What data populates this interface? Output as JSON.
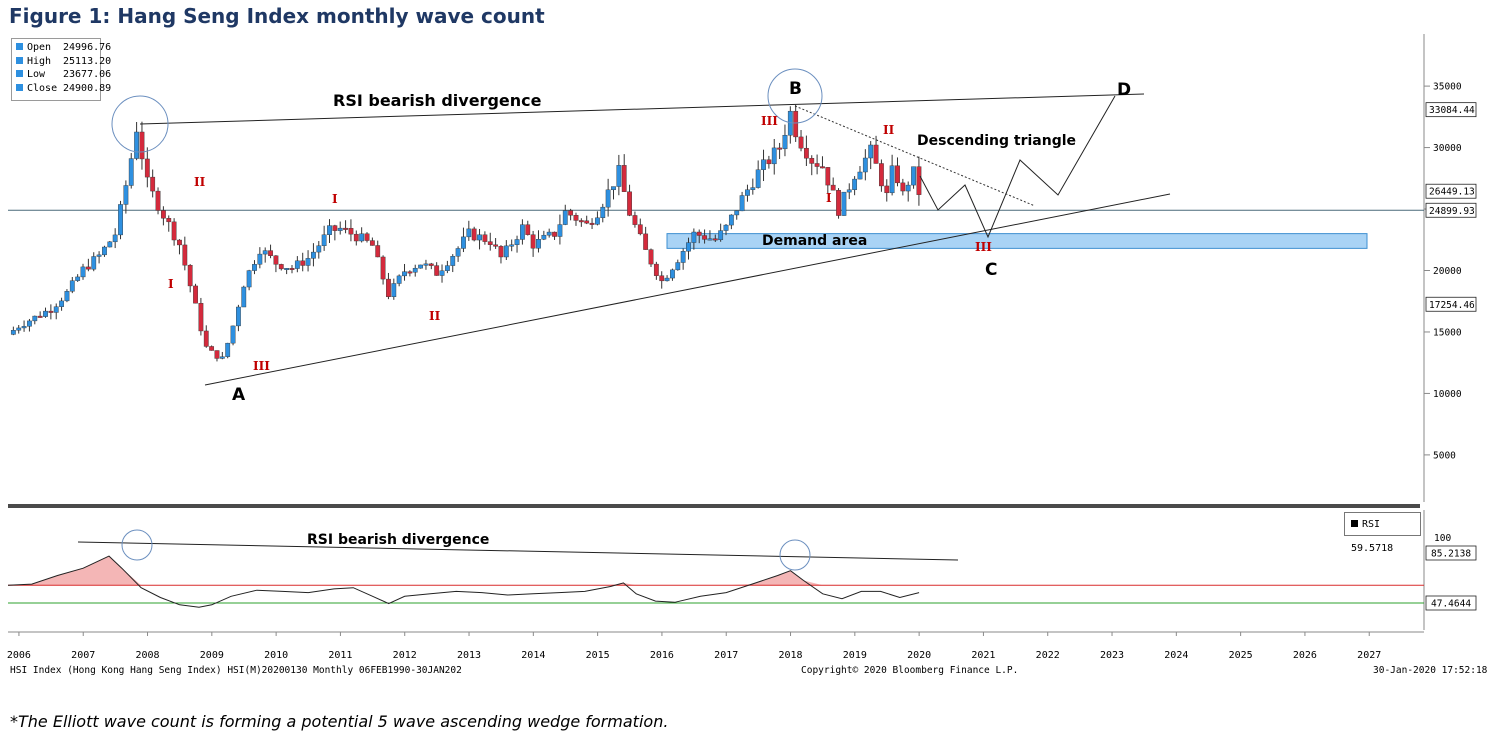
{
  "figure_title": "Figure 1: Hang Seng Index monthly wave count",
  "caption": "*The Elliott wave count is forming a potential 5 wave ascending wedge formation.",
  "legend": {
    "open_label": "Open",
    "open_value": "24996.76",
    "high_label": "High",
    "high_value": "25113.20",
    "low_label": "Low",
    "low_value": "23677.06",
    "close_label": "Close",
    "close_value": "24900.89"
  },
  "rsi_legend": {
    "label": "RSI",
    "value": "59.5718"
  },
  "footer": {
    "left": "HSI Index (Hong Kong Hang Seng Index) HSI(M)20200130  Monthly 06FEB1990-30JAN202",
    "center": "Copyright© 2020 Bloomberg Finance L.P.",
    "right": "30-Jan-2020 17:52:18"
  },
  "colors": {
    "up": "#2e90e0",
    "down": "#d42a3c",
    "title": "#1f3864",
    "wave_label": "#c00000",
    "demand": "#a9d3f5",
    "rsi_fill": "#f4b6b6",
    "rsi_upper": "#d92b2b",
    "rsi_lower": "#2ca02c"
  },
  "chart_data": [
    {
      "type": "candlestick",
      "title": "",
      "x_ticks": [
        "2006",
        "2007",
        "2008",
        "2009",
        "2010",
        "2011",
        "2012",
        "2013",
        "2014",
        "2015",
        "2016",
        "2017",
        "2018",
        "2019",
        "2020",
        "2021",
        "2022",
        "2023",
        "2024",
        "2025",
        "2026",
        "2027"
      ],
      "y_ticks": [
        5000,
        10000,
        15000,
        20000,
        25000,
        30000,
        35000
      ],
      "y_tick_labels": [
        "5000",
        "10000",
        "15000",
        "20000",
        "25000",
        "30000",
        "35000"
      ],
      "ylim": [
        0,
        39000
      ],
      "price_tags": [
        {
          "label": "33084.44",
          "value": 33084
        },
        {
          "label": "26449.13",
          "value": 26449
        },
        {
          "label": "24899.93",
          "value": 24900
        },
        {
          "label": "17254.46",
          "value": 17254
        }
      ],
      "close_series_approx": [
        [
          2005.83,
          14800
        ],
        [
          2006.0,
          15500
        ],
        [
          2006.25,
          16200
        ],
        [
          2006.5,
          16900
        ],
        [
          2006.75,
          18200
        ],
        [
          2007.0,
          20100
        ],
        [
          2007.25,
          21200
        ],
        [
          2007.5,
          23000
        ],
        [
          2007.7,
          27800
        ],
        [
          2007.83,
          31600
        ],
        [
          2008.0,
          27000
        ],
        [
          2008.25,
          24500
        ],
        [
          2008.5,
          22100
        ],
        [
          2008.75,
          17000
        ],
        [
          2008.9,
          13800
        ],
        [
          2009.0,
          13300
        ],
        [
          2009.17,
          12800
        ],
        [
          2009.33,
          15500
        ],
        [
          2009.5,
          19000
        ],
        [
          2009.75,
          21800
        ],
        [
          2010.0,
          20600
        ],
        [
          2010.25,
          20200
        ],
        [
          2010.5,
          21000
        ],
        [
          2010.83,
          23200
        ],
        [
          2011.0,
          23400
        ],
        [
          2011.25,
          22800
        ],
        [
          2011.5,
          22000
        ],
        [
          2011.75,
          18000
        ],
        [
          2012.0,
          20000
        ],
        [
          2012.25,
          20600
        ],
        [
          2012.5,
          19800
        ],
        [
          2012.83,
          21800
        ],
        [
          2013.0,
          23000
        ],
        [
          2013.33,
          22400
        ],
        [
          2013.5,
          21000
        ],
        [
          2013.83,
          23500
        ],
        [
          2014.0,
          22100
        ],
        [
          2014.33,
          23000
        ],
        [
          2014.5,
          24800
        ],
        [
          2014.83,
          23700
        ],
        [
          2015.0,
          24800
        ],
        [
          2015.33,
          28000
        ],
        [
          2015.5,
          24600
        ],
        [
          2015.75,
          21500
        ],
        [
          2016.0,
          19100
        ],
        [
          2016.25,
          21000
        ],
        [
          2016.5,
          23000
        ],
        [
          2016.83,
          22500
        ],
        [
          2017.0,
          23500
        ],
        [
          2017.25,
          25900
        ],
        [
          2017.5,
          28000
        ],
        [
          2017.83,
          30000
        ],
        [
          2018.0,
          32900
        ],
        [
          2018.1,
          31000
        ],
        [
          2018.33,
          29000
        ],
        [
          2018.5,
          28500
        ],
        [
          2018.75,
          24900
        ],
        [
          2019.0,
          27900
        ],
        [
          2019.25,
          29700
        ],
        [
          2019.5,
          26000
        ],
        [
          2019.6,
          28500
        ],
        [
          2019.75,
          26100
        ],
        [
          2019.9,
          28200
        ],
        [
          2020.0,
          26300
        ]
      ],
      "annotations": [
        "RSI bearish divergence",
        "Demand area",
        "Descending triangle",
        "A",
        "B",
        "C",
        "D",
        "I",
        "II",
        "III"
      ]
    },
    {
      "type": "line",
      "title": "",
      "series": [
        {
          "name": "RSI",
          "last_value": 59.5718
        }
      ],
      "ylim": [
        0,
        100
      ],
      "y_tick_labels": [
        "100"
      ],
      "levels": [
        {
          "label": "85.2138",
          "value": 85.2138
        },
        {
          "label": "47.4644",
          "value": 47.4644
        }
      ],
      "rsi_series_approx": [
        [
          2005.83,
          62
        ],
        [
          2006.2,
          63
        ],
        [
          2006.6,
          70
        ],
        [
          2007.0,
          76
        ],
        [
          2007.4,
          86
        ],
        [
          2007.6,
          76
        ],
        [
          2007.9,
          60
        ],
        [
          2008.2,
          52
        ],
        [
          2008.5,
          46
        ],
        [
          2008.8,
          44
        ],
        [
          2009.0,
          46
        ],
        [
          2009.3,
          53
        ],
        [
          2009.7,
          58
        ],
        [
          2010.1,
          57
        ],
        [
          2010.5,
          56
        ],
        [
          2010.9,
          59
        ],
        [
          2011.2,
          60
        ],
        [
          2011.5,
          53
        ],
        [
          2011.75,
          47
        ],
        [
          2012.0,
          53
        ],
        [
          2012.4,
          55
        ],
        [
          2012.8,
          57
        ],
        [
          2013.2,
          56
        ],
        [
          2013.6,
          54
        ],
        [
          2014.0,
          55
        ],
        [
          2014.4,
          56
        ],
        [
          2014.8,
          57
        ],
        [
          2015.2,
          61
        ],
        [
          2015.4,
          64
        ],
        [
          2015.6,
          55
        ],
        [
          2015.9,
          49
        ],
        [
          2016.2,
          48
        ],
        [
          2016.6,
          53
        ],
        [
          2017.0,
          56
        ],
        [
          2017.4,
          63
        ],
        [
          2017.8,
          70
        ],
        [
          2018.0,
          74
        ],
        [
          2018.2,
          66
        ],
        [
          2018.5,
          55
        ],
        [
          2018.8,
          51
        ],
        [
          2019.1,
          57
        ],
        [
          2019.4,
          57
        ],
        [
          2019.7,
          52
        ],
        [
          2020.0,
          56
        ]
      ]
    }
  ]
}
